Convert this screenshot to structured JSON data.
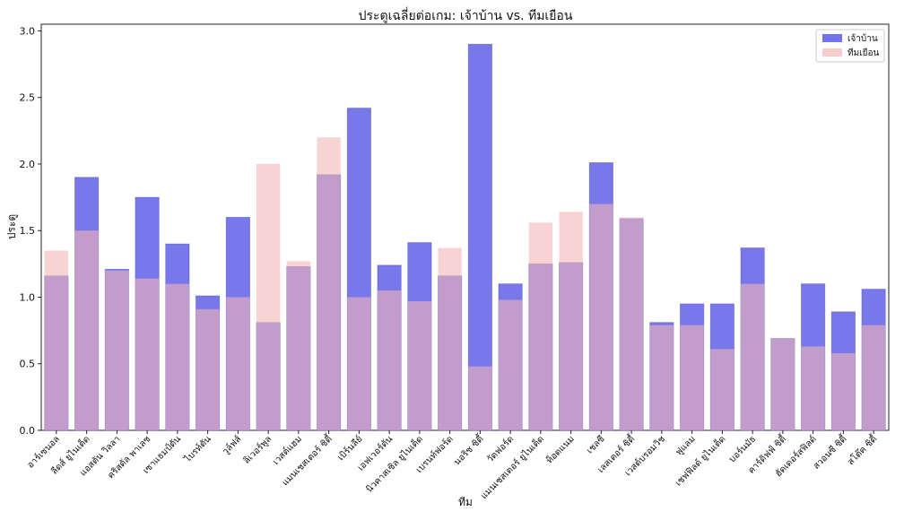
{
  "chart_data": {
    "type": "bar",
    "title": "ประตูเฉลี่ยต่อเกม: เจ้าบ้าน vs. ทีมเยือน",
    "xlabel": "ทีม",
    "ylabel": "ประตู",
    "ylim": [
      0,
      3.05
    ],
    "yticks": [
      "0.0",
      "0.5",
      "1.0",
      "1.5",
      "2.0",
      "2.5",
      "3.0"
    ],
    "legend_position": "top-right",
    "categories": [
      "อาร์เซนอล",
      "ลีดส์ ยูไนเต็ด",
      "แอสตัน วิลลา",
      "คริสตัล พาเลซ",
      "เซาแธมป์ตัน",
      "ไบรท์ตัน",
      "วูล์ฟส์",
      "ลิเวอร์พูล",
      "เวสต์แฮม",
      "แมนเชสเตอร์ ซิตี้",
      "เบิร์นลีย์",
      "เอฟเวอร์ตัน",
      "นิวคาสเซิล ยูไนเต็ด",
      "เบรนท์ฟอร์ด",
      "นอริช ซิตี้",
      "วัตฟอร์ด",
      "แมนเชสเตอร์ ยูไนเต็ด",
      "ท็อตแนม",
      "เชลซี",
      "เลสเตอร์ ซิตี้",
      "เวสต์บรอมวิช",
      "ฟูแลม",
      "เชฟฟิลด์ ยูไนเต็ด",
      "บอร์นมัธ",
      "คาร์ดิฟฟ์ ซิตี้",
      "ฮัดเดอร์สฟิลด์",
      "สวอนซี ซิตี้",
      "สโต๊ค ซิตี้"
    ],
    "series": [
      {
        "name": "เจ้าบ้าน",
        "color": "#5a5ae6",
        "values": [
          1.16,
          1.9,
          1.21,
          1.75,
          1.4,
          1.01,
          1.6,
          0.81,
          1.23,
          1.92,
          2.42,
          1.24,
          1.41,
          1.16,
          2.9,
          1.1,
          1.25,
          1.26,
          2.01,
          1.59,
          0.81,
          0.95,
          0.95,
          1.37,
          0.69,
          1.1,
          0.89,
          1.06
        ]
      },
      {
        "name": "ทีมเยือน",
        "color": "#f4b6b6",
        "values": [
          1.35,
          1.5,
          1.2,
          1.14,
          1.1,
          0.91,
          1.0,
          2.0,
          1.27,
          2.2,
          1.0,
          1.05,
          0.97,
          1.37,
          0.48,
          0.98,
          1.56,
          1.64,
          1.7,
          1.6,
          0.79,
          0.79,
          0.61,
          1.1,
          0.69,
          0.63,
          0.58,
          0.79
        ]
      }
    ]
  }
}
